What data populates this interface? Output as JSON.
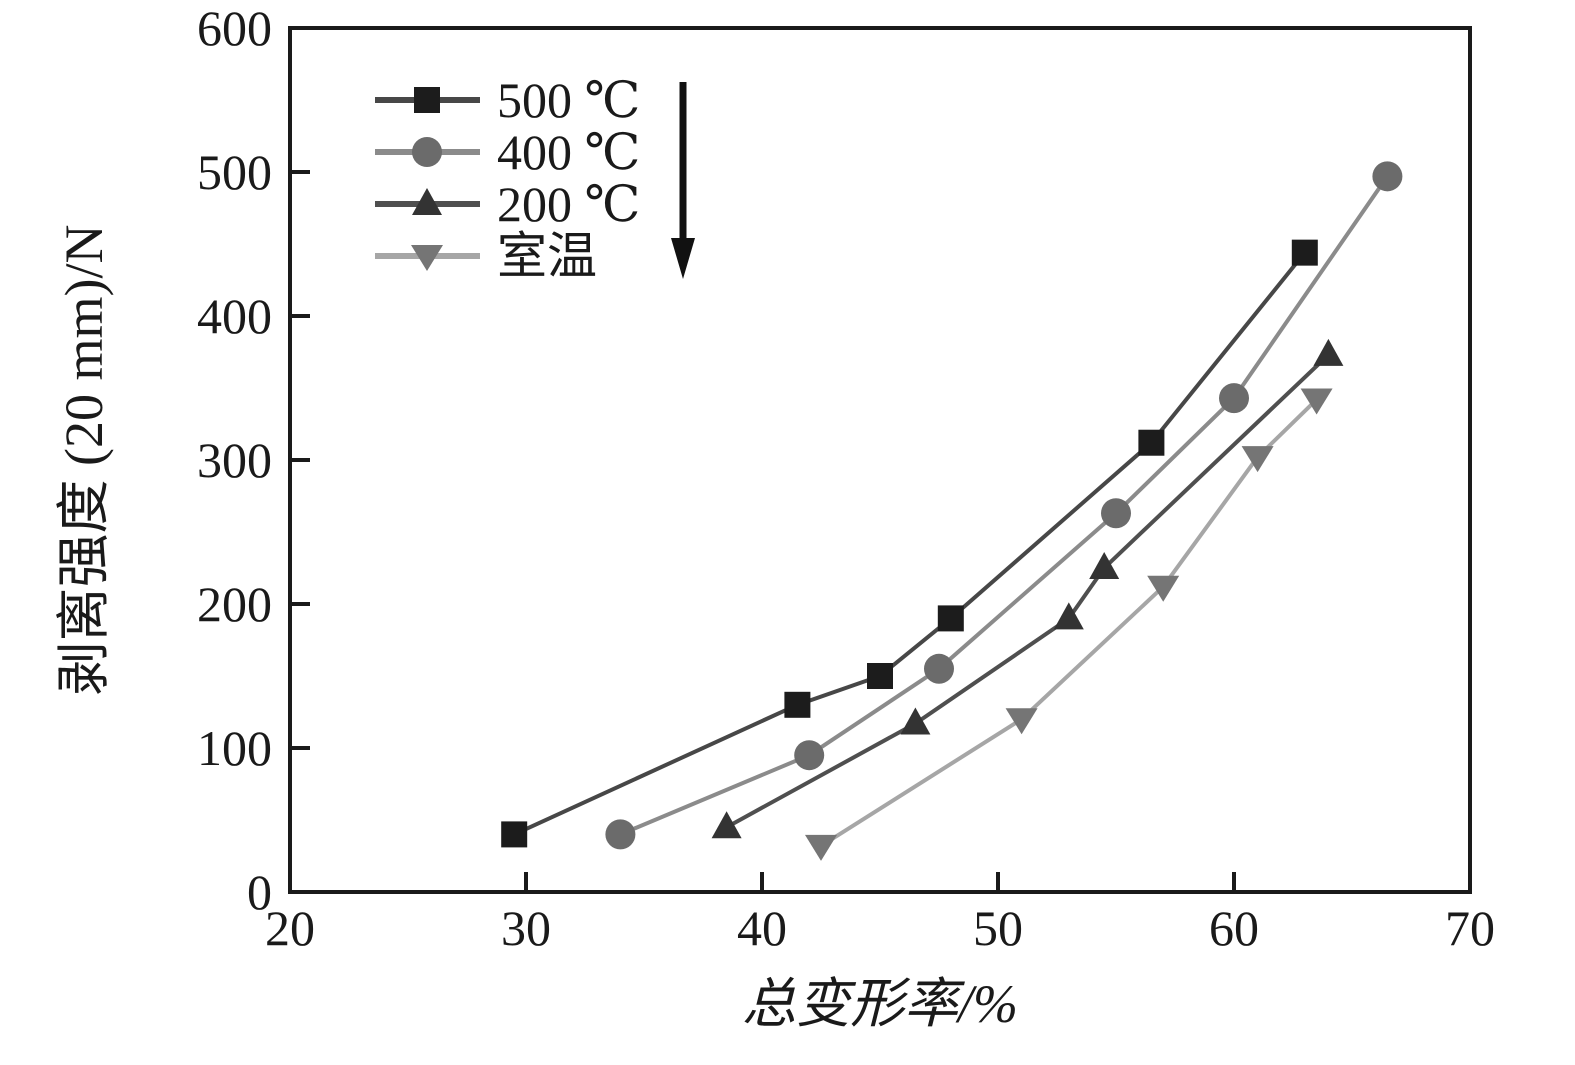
{
  "chart_data": {
    "type": "line",
    "title": "",
    "xlabel": "总变形率/%",
    "ylabel": "剥离强度 (20 mm)/N",
    "xlim": [
      20,
      70
    ],
    "ylim": [
      0,
      600
    ],
    "x_ticks": [
      20,
      30,
      40,
      50,
      60,
      70
    ],
    "y_ticks": [
      0,
      100,
      200,
      300,
      400,
      500,
      600
    ],
    "grid": false,
    "legend_position": "top-left-inside",
    "frame": "full-box",
    "axis_color": "#1a1a1a",
    "annotations": [
      {
        "type": "arrow",
        "direction": "down",
        "position": "right-of-legend"
      }
    ],
    "series": [
      {
        "name": "500 ℃",
        "marker": "square",
        "marker_color": "#1c1c1c",
        "line_color": "#474747",
        "points": [
          [
            29.5,
            40
          ],
          [
            41.5,
            130
          ],
          [
            45,
            150
          ],
          [
            48,
            190
          ],
          [
            56.5,
            312
          ],
          [
            63,
            444
          ]
        ]
      },
      {
        "name": "400 ℃",
        "marker": "circle",
        "marker_color": "#6b6b6b",
        "line_color": "#8b8b8b",
        "points": [
          [
            34,
            40
          ],
          [
            42,
            95
          ],
          [
            47.5,
            155
          ],
          [
            55,
            263
          ],
          [
            60,
            343
          ],
          [
            66.5,
            497
          ]
        ]
      },
      {
        "name": "200 ℃",
        "marker": "triangle-up",
        "marker_color": "#333333",
        "line_color": "#4f4f4f",
        "points": [
          [
            38.5,
            45
          ],
          [
            46.5,
            117
          ],
          [
            53,
            190
          ],
          [
            54.5,
            225
          ],
          [
            64,
            373
          ]
        ]
      },
      {
        "name": "室温",
        "marker": "triangle-down",
        "marker_color": "#757575",
        "line_color": "#a6a6a6",
        "points": [
          [
            42.5,
            32
          ],
          [
            51,
            120
          ],
          [
            57,
            212
          ],
          [
            61,
            302
          ],
          [
            63.5,
            342
          ]
        ]
      }
    ]
  }
}
